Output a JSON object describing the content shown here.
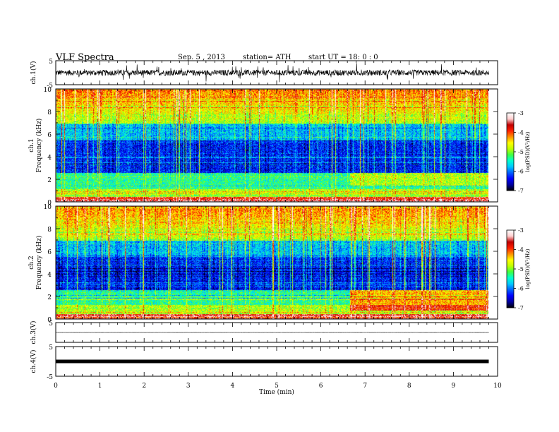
{
  "header": {
    "title": "VLF  Spectra",
    "date": "Sep. 5  , 2013",
    "station": "station= ATH",
    "start": "start  UT  =    18: 0   : 0"
  },
  "colors": {
    "colormap": [
      "#000000",
      "#0000a0",
      "#0000ff",
      "#0060ff",
      "#00c8ff",
      "#00ffd0",
      "#40ff40",
      "#c0ff00",
      "#ffff00",
      "#ff9000",
      "#ff2000",
      "#c00000",
      "#ffd0d0",
      "#ffffff"
    ],
    "trace": "#000000",
    "axis": "#000000"
  },
  "chart_data": [
    {
      "type": "line",
      "panel": "ch1",
      "ylabel": "ch.1(V)",
      "ylim": [
        -5,
        5
      ],
      "yticks": [
        "5",
        "-5"
      ],
      "xlim": [
        0,
        10
      ],
      "baseline": 0,
      "noise_amplitude": 1.2
    },
    {
      "type": "heatmap",
      "panel": "spec1",
      "ylabel_channel": "ch.1",
      "ylabel": "Frequency  (kHz)",
      "ylim": [
        0,
        10
      ],
      "yticks": [
        "0",
        "2",
        "4",
        "6",
        "8",
        "10"
      ],
      "xlim": [
        0,
        10
      ],
      "data_end_min": 9.8,
      "colorbar": {
        "label": "log(PSD)(V²/Hz)",
        "range": [
          -7,
          -3
        ],
        "ticks": [
          "-3",
          "-4",
          "-5",
          "-6",
          "-7"
        ]
      }
    },
    {
      "type": "heatmap",
      "panel": "spec2",
      "ylabel_channel": "ch.2",
      "ylabel": "Frequency  (kHz)",
      "ylim": [
        0,
        10
      ],
      "yticks": [
        "0",
        "2",
        "4",
        "6",
        "8",
        "10"
      ],
      "xlim": [
        0,
        10
      ],
      "data_end_min": 9.8,
      "colorbar": {
        "label": "log(PSD)(V²/Hz)",
        "range": [
          -7,
          -3
        ],
        "ticks": [
          "-3",
          "-4",
          "-5",
          "-6",
          "-7"
        ]
      }
    },
    {
      "type": "line",
      "panel": "ch3",
      "ylabel": "ch.3(V)",
      "ylim": [
        -5,
        5
      ],
      "yticks": [
        "5"
      ],
      "xlim": [
        0,
        10
      ],
      "baseline": 0,
      "noise_amplitude": 0.02
    },
    {
      "type": "line",
      "panel": "ch4",
      "ylabel": "ch.4(V)",
      "ylim": [
        -5,
        5
      ],
      "yticks": [
        "5",
        "-5"
      ],
      "xlim": [
        0,
        10
      ],
      "baseline": 0,
      "noise_amplitude": 0.3
    }
  ],
  "xaxis": {
    "label": "Time  (min)",
    "ticks": [
      "0",
      "1",
      "2",
      "3",
      "4",
      "5",
      "6",
      "7",
      "8",
      "9",
      "10"
    ]
  }
}
